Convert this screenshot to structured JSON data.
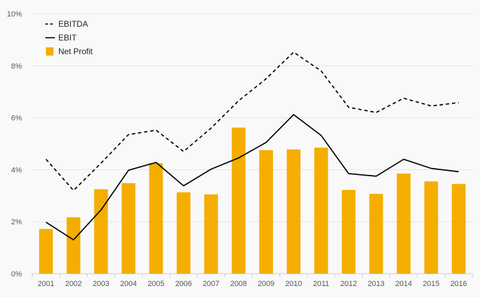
{
  "chart_data": {
    "type": "bar",
    "categories": [
      "2001",
      "2002",
      "2003",
      "2004",
      "2005",
      "2006",
      "2007",
      "2008",
      "2009",
      "2010",
      "2011",
      "2012",
      "2013",
      "2014",
      "2015",
      "2016"
    ],
    "series": [
      {
        "name": "Net Profit",
        "kind": "bar",
        "color": "#f5ae00",
        "values": [
          1.72,
          2.17,
          3.25,
          3.48,
          4.25,
          3.13,
          3.05,
          5.62,
          4.75,
          4.78,
          4.85,
          3.22,
          3.07,
          3.85,
          3.55,
          3.45
        ]
      },
      {
        "name": "EBITDA",
        "kind": "line",
        "dash": "dashed",
        "color": "#000000",
        "values": [
          4.4,
          3.2,
          4.25,
          5.35,
          5.52,
          4.7,
          5.6,
          6.65,
          7.5,
          8.52,
          7.8,
          6.4,
          6.2,
          6.75,
          6.45,
          6.58
        ]
      },
      {
        "name": "EBIT",
        "kind": "line",
        "dash": "solid",
        "color": "#000000",
        "values": [
          1.98,
          1.3,
          2.45,
          3.98,
          4.28,
          3.38,
          4.02,
          4.45,
          5.05,
          6.12,
          5.32,
          3.85,
          3.75,
          4.4,
          4.05,
          3.92
        ]
      }
    ],
    "yticks": [
      "0%",
      "2%",
      "4%",
      "6%",
      "8%",
      "10%"
    ],
    "ylim": [
      0,
      10
    ],
    "title": "",
    "xlabel": "",
    "ylabel": "",
    "grid": true,
    "legend": {
      "position": "top-left",
      "entries": [
        "EBITDA",
        "EBIT",
        "Net Profit"
      ]
    }
  }
}
